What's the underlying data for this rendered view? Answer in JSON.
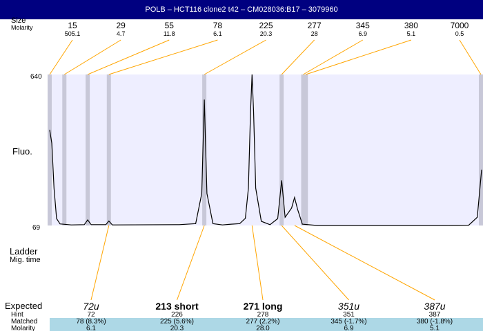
{
  "title": "POLB – HCT116 clone2 t42 – CM028036:B17 – 3079960",
  "chart_data": {
    "type": "line",
    "row_labels": {
      "size": "Size",
      "molarity": "Molarity",
      "fluo": "Fluo.",
      "ladder": "Ladder",
      "mig_time": "Mig. time",
      "expected": "Expected",
      "hint": "Hint",
      "matched": "Matched",
      "molarity_bottom": "Molarity"
    },
    "y_ticks": [
      "640",
      "69"
    ],
    "ylim": [
      69,
      640
    ],
    "ladder": [
      {
        "size": "15",
        "molarity": "505.1",
        "position": 0.0
      },
      {
        "size": "29",
        "molarity": "4.7",
        "position": 0.034
      },
      {
        "size": "55",
        "molarity": "11.8",
        "position": 0.088
      },
      {
        "size": "78",
        "molarity": "6.1",
        "position": 0.137
      },
      {
        "size": "225",
        "molarity": "20.3",
        "position": 0.358
      },
      {
        "size": "277",
        "molarity": "28",
        "position": 0.537
      },
      {
        "size": "345",
        "molarity": "6.9",
        "position": 0.587
      },
      {
        "size": "380",
        "molarity": "5.1",
        "position": 0.593
      },
      {
        "size": "7000",
        "molarity": "0.5",
        "position": 1.0
      }
    ],
    "series": [
      {
        "points": [
          [
            0.0,
            430
          ],
          [
            0.005,
            380
          ],
          [
            0.01,
            210
          ],
          [
            0.016,
            95
          ],
          [
            0.024,
            75
          ],
          [
            0.05,
            71
          ],
          [
            0.08,
            72
          ],
          [
            0.088,
            90
          ],
          [
            0.096,
            72
          ],
          [
            0.13,
            72
          ],
          [
            0.137,
            86
          ],
          [
            0.145,
            71
          ],
          [
            0.3,
            72
          ],
          [
            0.338,
            76
          ],
          [
            0.352,
            190
          ],
          [
            0.358,
            545
          ],
          [
            0.364,
            190
          ],
          [
            0.378,
            76
          ],
          [
            0.4,
            71
          ],
          [
            0.42,
            74
          ],
          [
            0.44,
            76
          ],
          [
            0.453,
            96
          ],
          [
            0.46,
            210
          ],
          [
            0.465,
            500
          ],
          [
            0.4685,
            640
          ],
          [
            0.472,
            500
          ],
          [
            0.477,
            210
          ],
          [
            0.49,
            85
          ],
          [
            0.51,
            72
          ],
          [
            0.528,
            95
          ],
          [
            0.537,
            240
          ],
          [
            0.545,
            100
          ],
          [
            0.56,
            135
          ],
          [
            0.567,
            175
          ],
          [
            0.574,
            130
          ],
          [
            0.585,
            74
          ],
          [
            0.62,
            69
          ],
          [
            0.9,
            69
          ],
          [
            0.97,
            70
          ],
          [
            0.99,
            100
          ],
          [
            1.0,
            280
          ]
        ]
      }
    ],
    "peaks": [
      {
        "expected": "72u",
        "expected_style": "italic",
        "hint": "72",
        "matched": "78 (8.3%)",
        "molarity": "6.1",
        "position": 0.137
      },
      {
        "expected": "213 short",
        "expected_style": "bold",
        "hint": "226",
        "matched": "225 (5.6%)",
        "molarity": "20.3",
        "position": 0.358
      },
      {
        "expected": "271 long",
        "expected_style": "bold",
        "hint": "278",
        "matched": "277 (2.2%)",
        "molarity": "28.0",
        "position": 0.4685
      },
      {
        "expected": "351u",
        "expected_style": "italic",
        "hint": "351",
        "matched": "345 (-1.7%)",
        "molarity": "6.9",
        "position": 0.537
      },
      {
        "expected": "387u",
        "expected_style": "italic",
        "hint": "387",
        "matched": "380 (-1.8%)",
        "molarity": "5.1",
        "position": 0.567
      }
    ],
    "colors": {
      "title_bar": "#000080",
      "plot_background": "#eeeeff",
      "ladder_band": "#c8c8d8",
      "connector": "#ffa500",
      "trace": "#000000",
      "matched_row": "#add8e6"
    }
  }
}
